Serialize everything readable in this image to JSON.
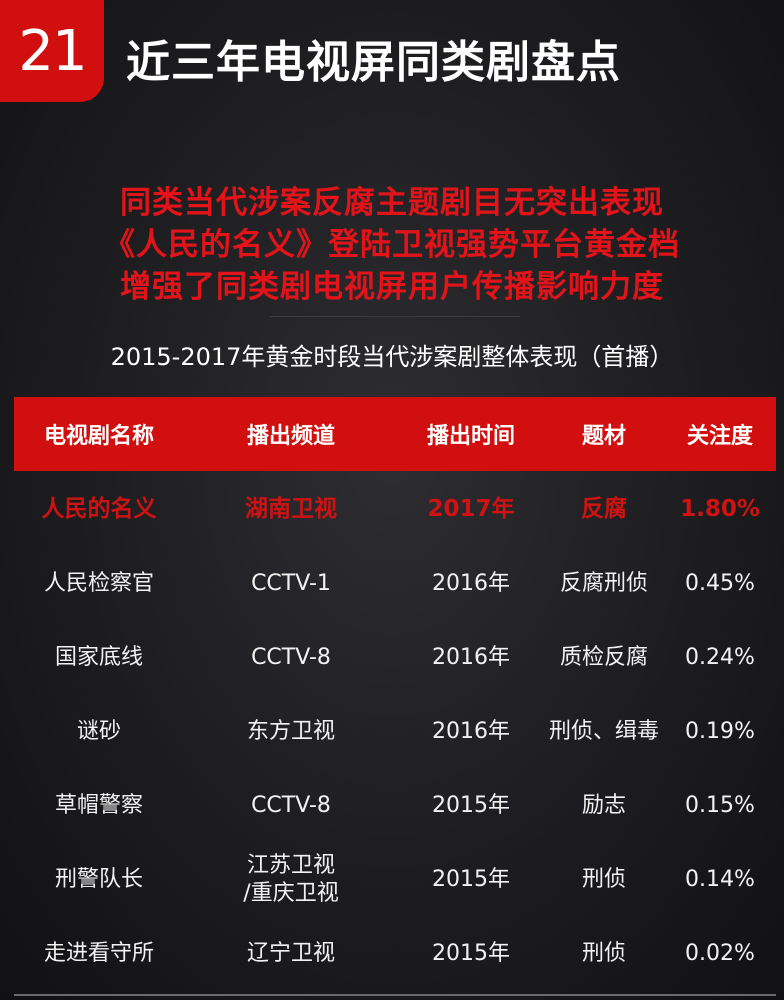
{
  "badge_number": "21",
  "page_title": "近三年电视屏同类剧盘点",
  "headline": [
    "同类当代涉案反腐主题剧目无突出表现",
    "《人民的名义》登陆卫视强势平台黄金档",
    "增强了同类剧电视屏用户传播影响力度"
  ],
  "subtitle": "2015-2017年黄金时段当代涉案剧整体表现（首播）",
  "table": {
    "headers": [
      "电视剧名称",
      "播出频道",
      "播出时间",
      "题材",
      "关注度"
    ],
    "rows": [
      [
        "人民的名义",
        "湖南卫视",
        "2017年",
        "反腐",
        "1.80%"
      ],
      [
        "人民检察官",
        "CCTV-1",
        "2016年",
        "反腐刑侦",
        "0.45%"
      ],
      [
        "国家底线",
        "CCTV-8",
        "2016年",
        "质检反腐",
        "0.24%"
      ],
      [
        "谜砂",
        "东方卫视",
        "2016年",
        "刑侦、缉毒",
        "0.19%"
      ],
      [
        "草帽警察",
        "CCTV-8",
        "2015年",
        "励志",
        "0.15%"
      ],
      [
        "刑警队长",
        "江苏卫视",
        "2015年",
        "刑侦",
        "0.14%"
      ],
      [
        "走进看守所",
        "辽宁卫视",
        "2015年",
        "刑侦",
        "0.02%"
      ]
    ],
    "row5_channel_line2": "/重庆卫视"
  },
  "colors": {
    "accent_red": "#d20f0f",
    "headline_red": "#e2141a",
    "background": "#1d1d20"
  }
}
